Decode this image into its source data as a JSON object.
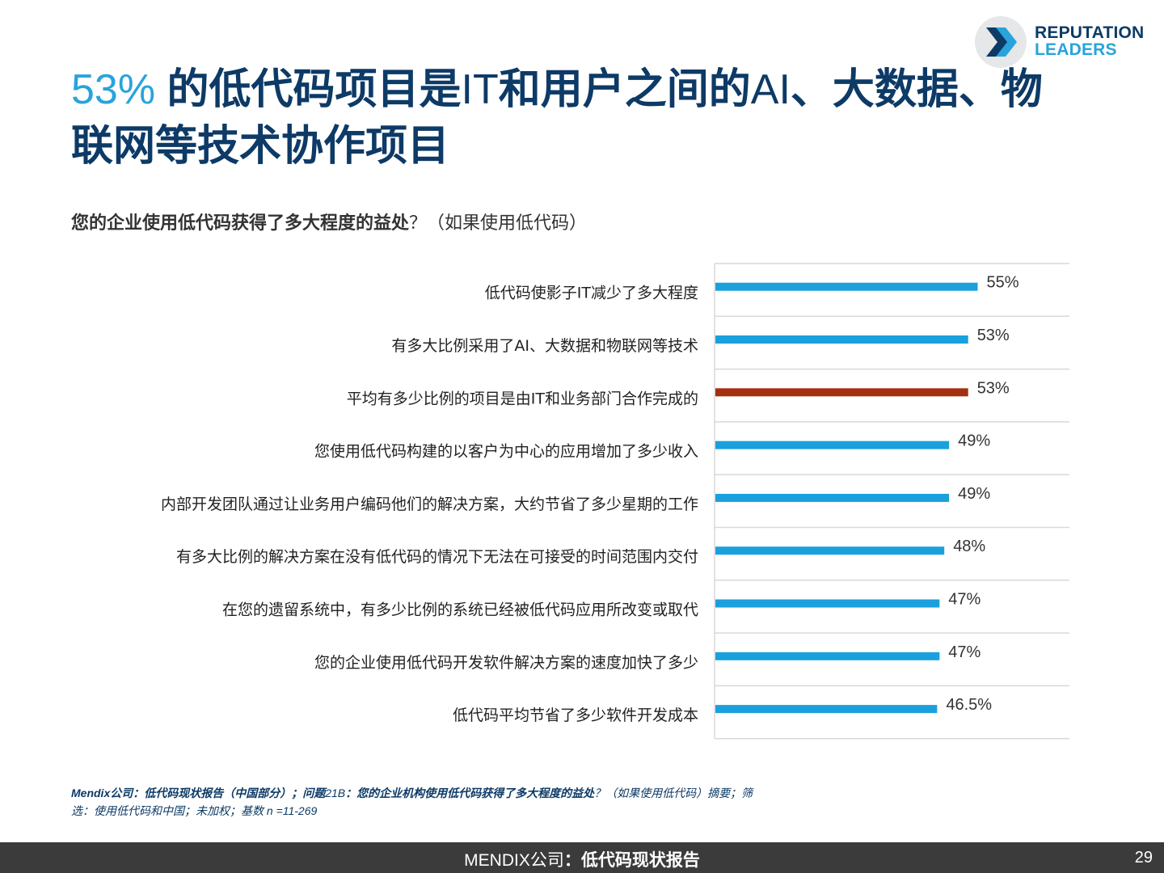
{
  "logo": {
    "line1": "REPUTATION",
    "line2": "LEADERS",
    "accent": "#29a3dc",
    "dark": "#0d3a66"
  },
  "title": {
    "highlight": "53%",
    "part1": " 的低代码项目是",
    "part2": "IT",
    "part3": "和用户之间的",
    "part4": "AI",
    "part5": "、大数据、物联网等技术协作项目"
  },
  "question": {
    "main": "您的企业使用低代码获得了多大程度的益处",
    "tail": "？（如果使用低代码）"
  },
  "chart_data": {
    "type": "bar",
    "orientation": "horizontal",
    "categories": [
      "低代码使影子IT减少了多大程度",
      "有多大比例采用了AI、大数据和物联网等技术",
      "平均有多少比例的项目是由IT和业务部门合作完成的",
      "您使用低代码构建的以客户为中心的应用增加了多少收入",
      "内部开发团队通过让业务用户编码他们的解决方案，大约节省了多少星期的工作",
      "有多大比例的解决方案在没有低代码的情况下无法在可接受的时间范围内交付",
      "在您的遗留系统中，有多少比例的系统已经被低代码应用所改变或取代",
      "您的企业使用低代码开发软件解决方案的速度加快了多少",
      "低代码平均节省了多少软件开发成本"
    ],
    "values": [
      55,
      53,
      53,
      49,
      49,
      48,
      47,
      47,
      46.5
    ],
    "labels": [
      "55%",
      "53%",
      "53%",
      "49%",
      "49%",
      "48%",
      "47%",
      "47%",
      "46.5%"
    ],
    "highlight_index": 2,
    "colors": {
      "bar": "#1aa0dc",
      "highlight": "#a3300f",
      "grid": "#d9d9d9"
    },
    "grid": true
  },
  "footnote": {
    "p1": "Mendix",
    "p2": "公司：低代码现状报告（中国部分）；问题",
    "p3": "21B",
    "p4": "：您的企业机构使用低代码获得了多大程度的益处",
    "p5": "？（如果使用低代码）摘要；筛选：使用低代码和中国；未加权；基数",
    "p6": " n =11-269"
  },
  "footer": {
    "brand": "MENDIX公司",
    "sep": "：",
    "report": "低代码现状报告",
    "page": "29"
  }
}
